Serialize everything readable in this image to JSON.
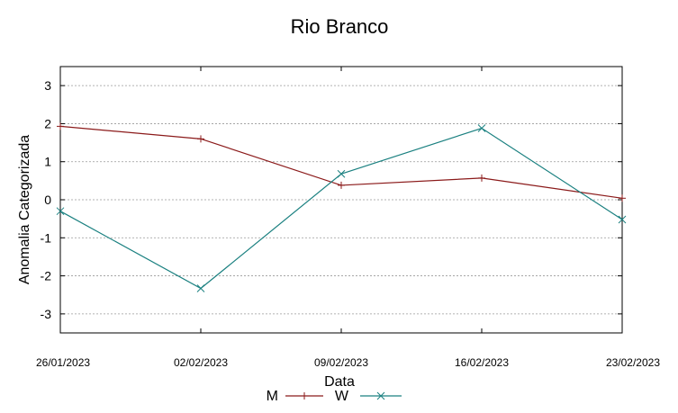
{
  "chart_data": {
    "type": "line",
    "title": "Rio Branco",
    "xlabel": "Data",
    "ylabel": "Anomalia Categorizada",
    "x": [
      "26/01/2023",
      "02/02/2023",
      "09/02/2023",
      "16/02/2023",
      "23/02/2023"
    ],
    "xlim": [
      "26/01/2023",
      "23/02/2023"
    ],
    "ylim": [
      -3.5,
      3.5
    ],
    "yticks": [
      "3",
      "2",
      "1",
      "0",
      "-1",
      "-2",
      "-3"
    ],
    "grid": true,
    "legend_position": "bottom",
    "series": [
      {
        "name": "M",
        "color": "#8b1a1a",
        "marker": "plus",
        "values": [
          1.93,
          1.6,
          0.38,
          0.57,
          0.04
        ]
      },
      {
        "name": "W",
        "color": "#1a8080",
        "marker": "cross",
        "values": [
          -0.3,
          -2.33,
          0.68,
          1.88,
          -0.52
        ]
      }
    ]
  }
}
